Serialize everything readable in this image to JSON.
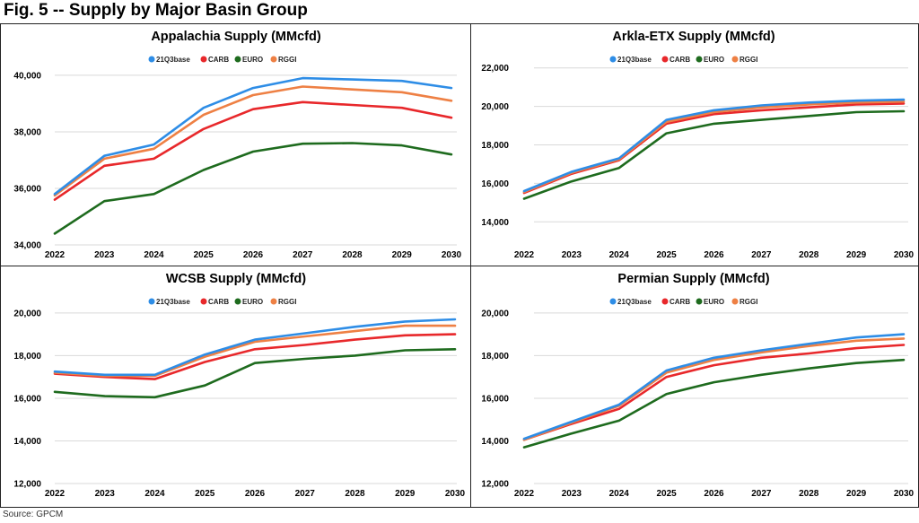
{
  "figure": {
    "title": "Fig. 5 -- Supply by Major Basin Group",
    "source": "Source: GPCM"
  },
  "colors": {
    "21Q3base": "#2e8de6",
    "CARB": "#e8282b",
    "EURO": "#1e6b1e",
    "RGGI": "#ee8044"
  },
  "chart_data": [
    {
      "type": "line",
      "title": "Appalachia Supply (MMcfd)",
      "x": [
        "2022",
        "2023",
        "2024",
        "2025",
        "2026",
        "2027",
        "2028",
        "2029",
        "2030"
      ],
      "yticks": [
        34000,
        36000,
        38000,
        40000
      ],
      "ytick_labels": [
        "34,000",
        "36,000",
        "38,000",
        "40,000"
      ],
      "ylim": [
        34000,
        40600
      ],
      "grid": "horizontal",
      "legend_position": "top-center",
      "series": [
        {
          "name": "21Q3base",
          "values": [
            35800,
            37150,
            37550,
            38850,
            39550,
            39900,
            39850,
            39800,
            39550
          ]
        },
        {
          "name": "CARB",
          "values": [
            35600,
            36800,
            37050,
            38100,
            38800,
            39050,
            38950,
            38850,
            38500
          ]
        },
        {
          "name": "EURO",
          "values": [
            34400,
            35550,
            35800,
            36650,
            37300,
            37580,
            37600,
            37520,
            37200
          ]
        },
        {
          "name": "RGGI",
          "values": [
            35750,
            37050,
            37400,
            38600,
            39300,
            39600,
            39500,
            39400,
            39100
          ]
        }
      ]
    },
    {
      "type": "line",
      "title": "Arkla-ETX Supply (MMcfd)",
      "x": [
        "2022",
        "2023",
        "2024",
        "2025",
        "2026",
        "2027",
        "2028",
        "2029",
        "2030"
      ],
      "yticks": [
        14000,
        16000,
        18000,
        20000,
        22000
      ],
      "ytick_labels": [
        "14,000",
        "16,000",
        "18,000",
        "20,000",
        "22,000"
      ],
      "ylim": [
        12800,
        22500
      ],
      "grid": "horizontal",
      "legend_position": "top-center",
      "series": [
        {
          "name": "21Q3base",
          "values": [
            15600,
            16600,
            17300,
            19300,
            19800,
            20050,
            20200,
            20300,
            20350
          ]
        },
        {
          "name": "CARB",
          "values": [
            15500,
            16500,
            17200,
            19100,
            19600,
            19800,
            19950,
            20100,
            20150
          ]
        },
        {
          "name": "EURO",
          "values": [
            15200,
            16100,
            16800,
            18600,
            19100,
            19300,
            19500,
            19700,
            19750
          ]
        },
        {
          "name": "RGGI",
          "values": [
            15550,
            16550,
            17250,
            19200,
            19700,
            19950,
            20100,
            20200,
            20250
          ]
        }
      ]
    },
    {
      "type": "line",
      "title": "WCSB Supply (MMcfd)",
      "x": [
        "2022",
        "2023",
        "2024",
        "2025",
        "2026",
        "2027",
        "2028",
        "2029",
        "2030"
      ],
      "yticks": [
        12000,
        14000,
        16000,
        18000,
        20000
      ],
      "ytick_labels": [
        "12,000",
        "14,000",
        "16,000",
        "18,000",
        "20,000"
      ],
      "ylim": [
        12000,
        20500
      ],
      "grid": "horizontal",
      "legend_position": "top-center",
      "series": [
        {
          "name": "21Q3base",
          "values": [
            17250,
            17100,
            17100,
            18050,
            18750,
            19050,
            19350,
            19600,
            19700
          ]
        },
        {
          "name": "CARB",
          "values": [
            17150,
            17000,
            16900,
            17700,
            18300,
            18500,
            18750,
            18950,
            19000
          ]
        },
        {
          "name": "EURO",
          "values": [
            16300,
            16100,
            16050,
            16600,
            17650,
            17850,
            18000,
            18250,
            18300
          ]
        },
        {
          "name": "RGGI",
          "values": [
            17200,
            17050,
            17050,
            17950,
            18650,
            18900,
            19150,
            19400,
            19400
          ]
        }
      ]
    },
    {
      "type": "line",
      "title": "Permian Supply (MMcfd)",
      "x": [
        "2022",
        "2023",
        "2024",
        "2025",
        "2026",
        "2027",
        "2028",
        "2029",
        "2030"
      ],
      "yticks": [
        12000,
        14000,
        16000,
        18000,
        20000
      ],
      "ytick_labels": [
        "12,000",
        "14,000",
        "16,000",
        "18,000",
        "20,000"
      ],
      "ylim": [
        12000,
        20500
      ],
      "grid": "horizontal",
      "legend_position": "top-center",
      "series": [
        {
          "name": "21Q3base",
          "values": [
            14100,
            14900,
            15700,
            17300,
            17900,
            18250,
            18550,
            18850,
            19000
          ]
        },
        {
          "name": "CARB",
          "values": [
            14050,
            14800,
            15500,
            17000,
            17550,
            17900,
            18100,
            18350,
            18500
          ]
        },
        {
          "name": "EURO",
          "values": [
            13700,
            14350,
            14950,
            16200,
            16750,
            17100,
            17400,
            17650,
            17800
          ]
        },
        {
          "name": "RGGI",
          "values": [
            14050,
            14850,
            15650,
            17200,
            17800,
            18150,
            18450,
            18700,
            18800
          ]
        }
      ]
    }
  ]
}
